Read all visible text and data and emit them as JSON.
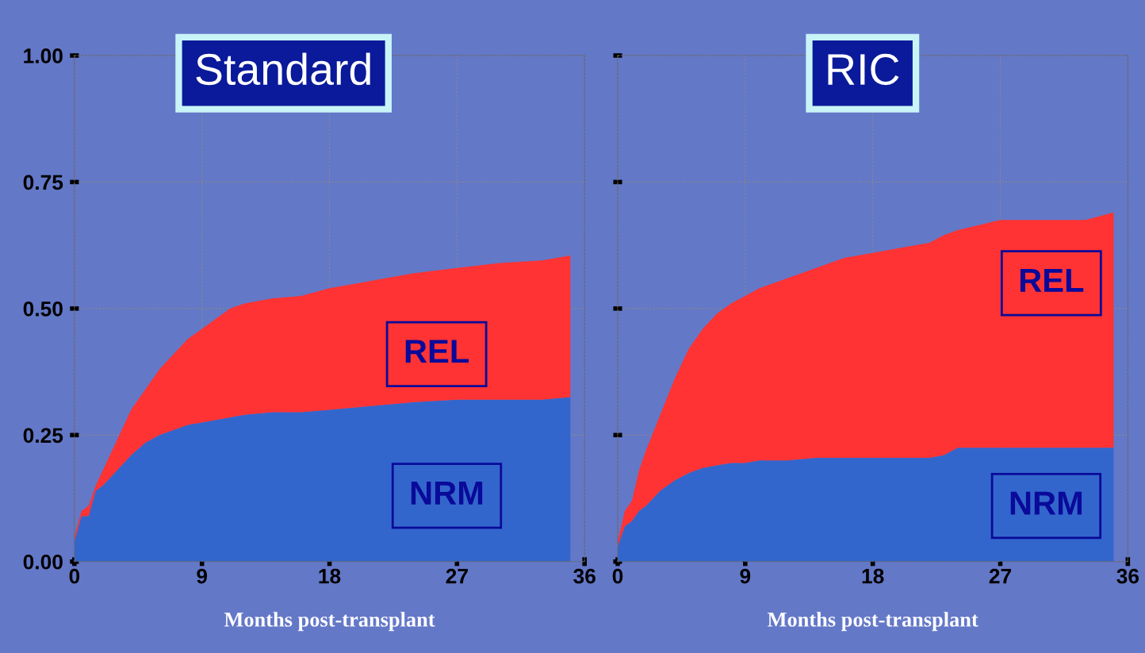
{
  "chart_data": [
    {
      "type": "area",
      "stacked": true,
      "title": "Standard",
      "xlabel": "Months post-transplant",
      "xlim": [
        0,
        36
      ],
      "ylim": [
        0,
        1
      ],
      "xticks": [
        0,
        9,
        18,
        27,
        36
      ],
      "yticks": [
        {
          "value": 0,
          "label": "0.00"
        },
        {
          "value": 0.25,
          "label": "0.25"
        },
        {
          "value": 0.5,
          "label": "0.50"
        },
        {
          "value": 0.75,
          "label": "0.75"
        },
        {
          "value": 1,
          "label": "1.00"
        }
      ],
      "grid": true,
      "legend": false,
      "x": [
        0,
        0.5,
        1,
        1.5,
        2,
        3,
        4,
        5,
        6,
        7,
        8,
        9,
        10,
        11,
        12,
        14,
        16,
        18,
        20,
        22,
        24,
        27,
        30,
        33,
        35
      ],
      "series": [
        {
          "name": "NRM",
          "color": "#3366cc",
          "values": [
            0.04,
            0.09,
            0.09,
            0.14,
            0.15,
            0.18,
            0.21,
            0.235,
            0.25,
            0.26,
            0.27,
            0.275,
            0.28,
            0.285,
            0.29,
            0.295,
            0.295,
            0.3,
            0.305,
            0.31,
            0.315,
            0.32,
            0.32,
            0.32,
            0.325
          ]
        },
        {
          "name": "REL",
          "color": "#ff3333",
          "values": [
            0.01,
            0.01,
            0.02,
            0.01,
            0.03,
            0.06,
            0.09,
            0.105,
            0.13,
            0.15,
            0.17,
            0.185,
            0.2,
            0.215,
            0.22,
            0.225,
            0.23,
            0.24,
            0.245,
            0.25,
            0.255,
            0.26,
            0.27,
            0.275,
            0.28
          ]
        }
      ]
    },
    {
      "type": "area",
      "stacked": true,
      "title": "RIC",
      "xlabel": "Months post-transplant",
      "xlim": [
        0,
        36
      ],
      "ylim": [
        0,
        1
      ],
      "xticks": [
        0,
        9,
        18,
        27,
        36
      ],
      "yticks": [
        {
          "value": 0,
          "label": null
        },
        {
          "value": 0.25,
          "label": null
        },
        {
          "value": 0.5,
          "label": null
        },
        {
          "value": 0.75,
          "label": null
        },
        {
          "value": 1,
          "label": null
        }
      ],
      "grid": true,
      "legend": false,
      "tick_labels": "x",
      "x": [
        0,
        0.5,
        1,
        1.5,
        2,
        3,
        4,
        5,
        6,
        7,
        8,
        9,
        10,
        12,
        14,
        16,
        18,
        20,
        22,
        23,
        24,
        27,
        30,
        33,
        35
      ],
      "series": [
        {
          "name": "NRM",
          "color": "#3366cc",
          "values": [
            0.03,
            0.07,
            0.08,
            0.1,
            0.11,
            0.14,
            0.16,
            0.175,
            0.185,
            0.19,
            0.195,
            0.195,
            0.2,
            0.2,
            0.205,
            0.205,
            0.205,
            0.205,
            0.205,
            0.21,
            0.225,
            0.225,
            0.225,
            0.225,
            0.225
          ]
        },
        {
          "name": "REL",
          "color": "#ff3333",
          "values": [
            0.01,
            0.03,
            0.04,
            0.08,
            0.11,
            0.15,
            0.2,
            0.245,
            0.275,
            0.3,
            0.315,
            0.33,
            0.34,
            0.36,
            0.375,
            0.395,
            0.405,
            0.415,
            0.425,
            0.435,
            0.43,
            0.45,
            0.45,
            0.45,
            0.465
          ]
        }
      ]
    }
  ]
}
